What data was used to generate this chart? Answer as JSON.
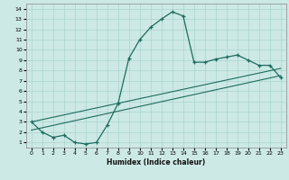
{
  "xlabel": "Humidex (Indice chaleur)",
  "xlim": [
    -0.5,
    23.5
  ],
  "ylim": [
    0.5,
    14.5
  ],
  "xticks": [
    0,
    1,
    2,
    3,
    4,
    5,
    6,
    7,
    8,
    9,
    10,
    11,
    12,
    13,
    14,
    15,
    16,
    17,
    18,
    19,
    20,
    21,
    22,
    23
  ],
  "yticks": [
    1,
    2,
    3,
    4,
    5,
    6,
    7,
    8,
    9,
    10,
    11,
    12,
    13,
    14
  ],
  "bg_color": "#cce9e5",
  "grid_color": "#aad4cf",
  "line_color": "#1e6b5e",
  "line1_x": [
    0,
    1,
    2,
    3,
    4,
    5,
    6,
    7,
    8,
    9,
    10,
    11,
    12,
    13,
    14,
    15,
    16,
    17,
    18,
    19,
    20,
    21,
    22,
    23
  ],
  "line1_y": [
    3.0,
    2.0,
    1.5,
    1.7,
    1.0,
    0.85,
    1.0,
    2.7,
    4.8,
    9.2,
    11.0,
    12.2,
    13.0,
    13.7,
    13.3,
    8.8,
    8.8,
    9.1,
    9.3,
    9.5,
    9.0,
    8.5,
    8.5,
    7.3
  ],
  "line2_x": [
    0,
    23
  ],
  "line2_y": [
    2.2,
    7.5
  ],
  "line3_x": [
    0,
    23
  ],
  "line3_y": [
    3.0,
    8.2
  ]
}
